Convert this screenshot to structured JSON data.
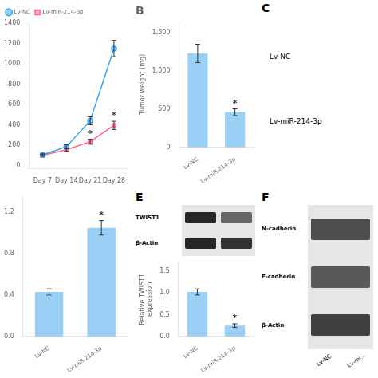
{
  "chart_data": [
    {
      "type": "line",
      "x": [
        7,
        14,
        21,
        28
      ],
      "xlim": [
        3,
        32
      ],
      "xticks": [
        {
          "value": 7,
          "label": "Day 7"
        },
        {
          "value": 14,
          "label": "Day 14"
        },
        {
          "value": 21,
          "label": "Day 21"
        },
        {
          "value": 28,
          "label": "Day 28"
        }
      ],
      "ylim": [
        -30,
        1400
      ],
      "yticks": [
        0,
        200,
        400,
        600,
        800,
        1000,
        1200,
        1400
      ],
      "series": [
        {
          "name": "Lv-NC",
          "marker": "circle",
          "values": [
            105,
            185,
            440,
            1150
          ],
          "errors": [
            10,
            20,
            40,
            80
          ]
        },
        {
          "name": "Lv-miR-214-3p",
          "marker": "square",
          "values": [
            100,
            155,
            235,
            395
          ],
          "errors": [
            8,
            15,
            25,
            40
          ]
        }
      ],
      "legend": "upper left",
      "grid": false,
      "annotations": [
        {
          "text": "*",
          "series": "Lv-miR-214-3p",
          "x": 21
        },
        {
          "text": "*",
          "series": "Lv-miR-214-3p",
          "x": 28
        }
      ]
    },
    {
      "type": "bar",
      "title": "B",
      "categories": [
        "Lv-NC",
        "Lv-miR-214-3p"
      ],
      "values": [
        1230,
        460
      ],
      "errors": [
        120,
        45
      ],
      "ylabel": "Tumor weight (mg)",
      "ylim": [
        0,
        1650
      ],
      "yticks": [
        0,
        500,
        {
          "value": 1000,
          "label": "1,000"
        },
        {
          "value": 1500,
          "label": "1,500"
        }
      ],
      "grid": false,
      "annotations": [
        {
          "text": "*",
          "category": "Lv-miR-214-3p"
        }
      ]
    },
    {
      "type": "text",
      "title": "C",
      "annotations": [
        "Lv-NC",
        "Lv-miR-214-3p"
      ]
    },
    {
      "type": "bar",
      "categories": [
        "Lv-NC",
        "Lv-miR-214-3p"
      ],
      "values": [
        0.43,
        1.05
      ],
      "errors": [
        0.03,
        0.07
      ],
      "ylim": [
        0,
        1.35
      ],
      "yticks": [
        {
          "value": 0.0,
          "label": "0.0"
        },
        0.4,
        0.8,
        1.2
      ],
      "grid": false,
      "annotations": [
        {
          "text": "*",
          "category": "Lv-miR-214-3p"
        }
      ]
    },
    {
      "type": "blot",
      "title": "E",
      "labels": [
        "TWIST1",
        "β-Actin"
      ],
      "colors": [
        "#262626",
        "#666666",
        "#262626",
        "#333333"
      ]
    },
    {
      "type": "bar",
      "categories": [
        "Lv-NC",
        "Lv-miR-214-3p"
      ],
      "values": [
        1.02,
        0.25
      ],
      "errors": [
        0.07,
        0.04
      ],
      "ylabel": "Relative TWIST1\nexpression",
      "ylim": [
        0,
        1.7
      ],
      "yticks": [
        {
          "value": 0.0,
          "label": "0.0"
        },
        0.5,
        {
          "value": 1.0,
          "label": "1.0"
        },
        {
          "value": 1.5,
          "label": "1.5"
        }
      ],
      "grid": false,
      "annotations": [
        {
          "text": "*",
          "category": "Lv-miR-214-3p"
        }
      ]
    },
    {
      "type": "blot",
      "title": "F",
      "labels": [
        "N-cadherin",
        "E-cadherin",
        "β-Actin"
      ],
      "categories": [
        "Lv-NC",
        "Lv-mi…"
      ],
      "colors": [
        "#4d4d4d",
        "#595959",
        "#404040"
      ]
    }
  ]
}
